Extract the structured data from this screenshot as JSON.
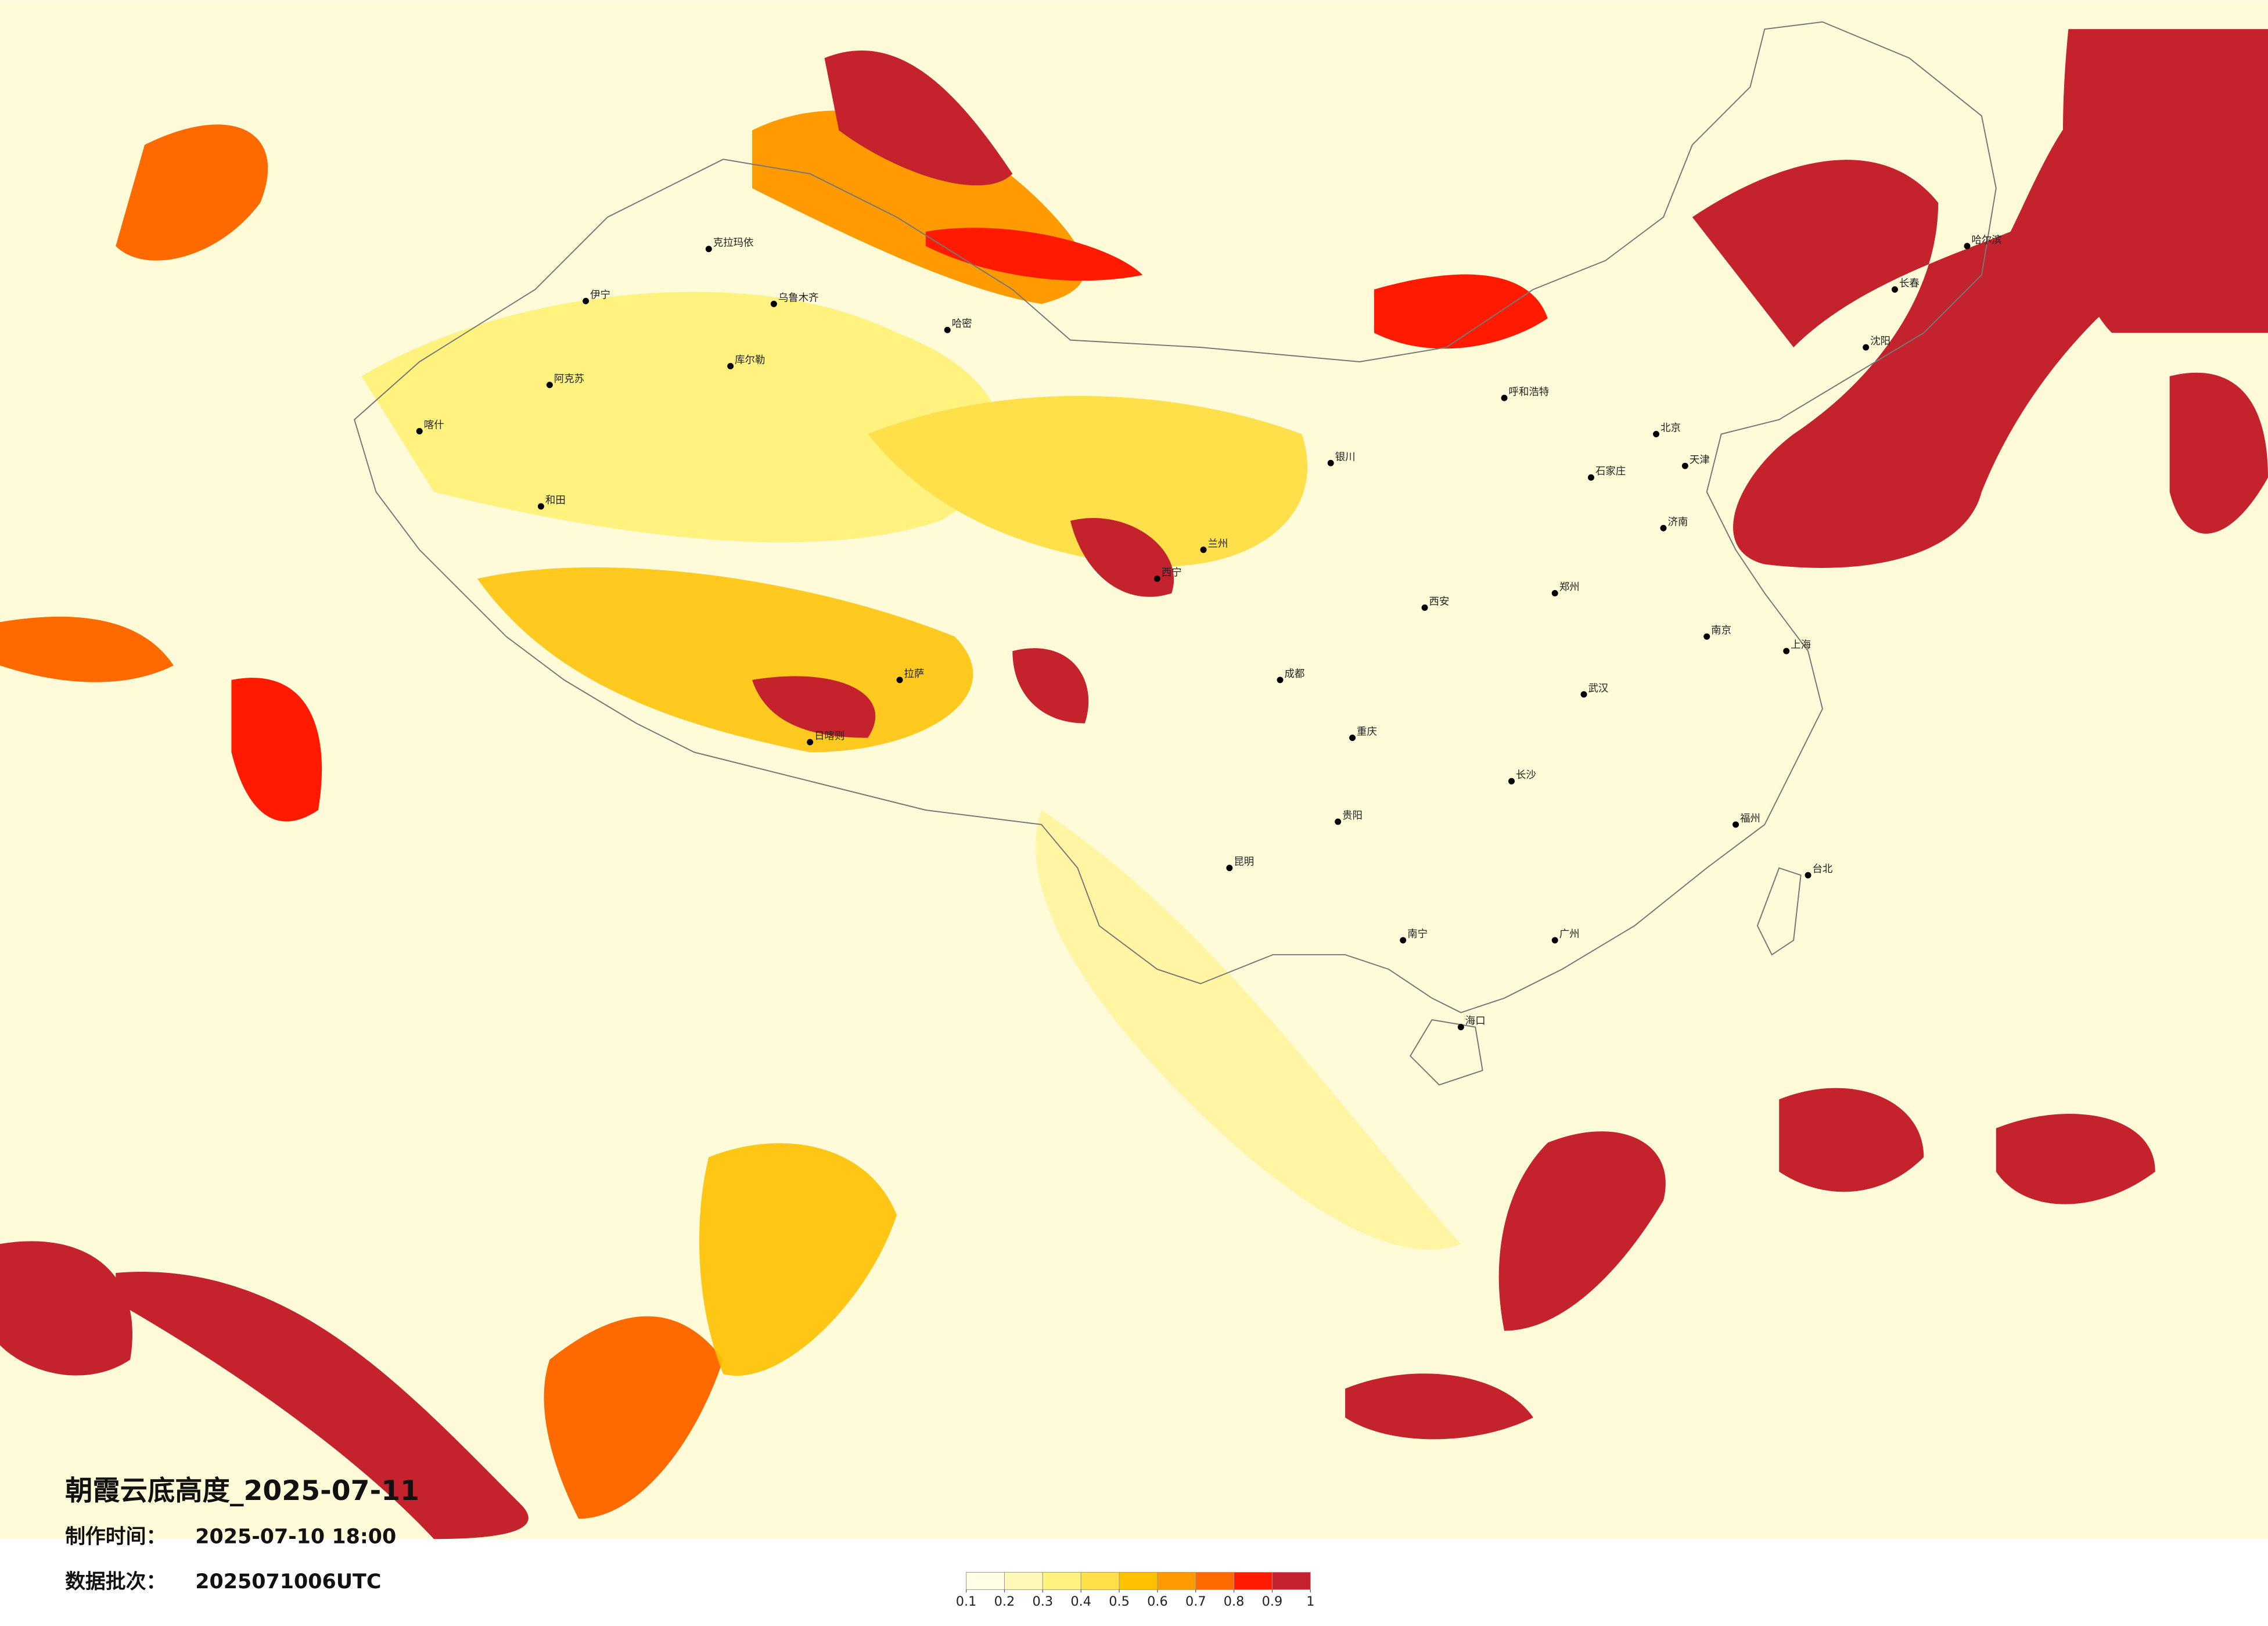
{
  "title": "朝霞云底高度_2025-07-11",
  "info": [
    {
      "label": "制作时间：",
      "value": "2025-07-10 18:00"
    },
    {
      "label": "数据批次：",
      "value": "2025071006UTC"
    }
  ],
  "legend": {
    "ticks": [
      0.1,
      0.2,
      0.3,
      0.4,
      0.5,
      0.6,
      0.7,
      0.8,
      0.9,
      1
    ],
    "colors": [
      "#fffde6",
      "#fff8b8",
      "#fff27e",
      "#ffe04a",
      "#ffc000",
      "#ff9b00",
      "#ff6a00",
      "#ff1a00",
      "#c4222c"
    ]
  },
  "cities": [
    "克拉玛依",
    "乌鲁木齐",
    "伊宁",
    "阿克苏",
    "喀什",
    "和田",
    "库尔勒",
    "哈密",
    "日喀则",
    "拉萨",
    "西宁",
    "兰州",
    "银川",
    "呼和浩特",
    "北京",
    "天津",
    "石家庄",
    "济南",
    "郑州",
    "西安",
    "成都",
    "重庆",
    "贵阳",
    "昆明",
    "南宁",
    "长沙",
    "武汉",
    "南京",
    "上海",
    "福州",
    "广州",
    "海口",
    "台北",
    "沈阳",
    "长春",
    "哈尔滨"
  ]
}
